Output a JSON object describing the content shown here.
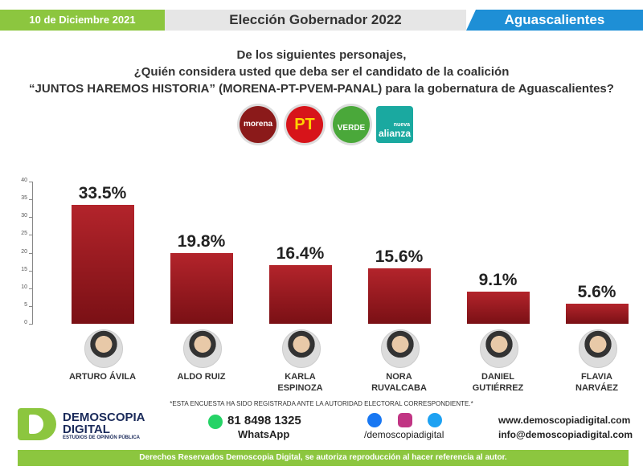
{
  "header": {
    "date": "10 de Diciembre 2021",
    "title": "Elección Gobernador 2022",
    "state": "Aguascalientes"
  },
  "question": [
    "De los siguientes personajes,",
    "¿Quién considera usted que deba ser el candidato de la coalición",
    "“JUNTOS HAREMOS HISTORIA” (MORENA-PT-PVEM-PANAL)  para la gobernatura de Aguascalientes?"
  ],
  "parties": [
    "morena",
    "PT",
    "VERDE",
    "nueva",
    "alianza"
  ],
  "chart_data": {
    "type": "bar",
    "categories": [
      "ARTURO ÁVILA",
      "ALDO RUIZ",
      "KARLA ESPINOZA",
      "NORA RUVALCABA",
      "DANIEL GUTIÉRREZ",
      "FLAVIA NARVÁEZ"
    ],
    "values": [
      33.5,
      19.8,
      16.4,
      15.6,
      9.1,
      5.6
    ],
    "value_labels": [
      "33.5%",
      "19.8%",
      "16.4%",
      "15.6%",
      "9.1%",
      "5.6%"
    ],
    "color": "#9b1b22",
    "ylim": [
      0,
      40
    ],
    "yticks": [
      0,
      5,
      10,
      15,
      20,
      25,
      30,
      35,
      40
    ]
  },
  "footer": {
    "note": "*ESTA ENCUESTA HA SIDO REGISTRADA ANTE LA AUTORIDAD ELECTORAL CORRESPONDIENTE.*",
    "brand_1": "DEMOSCOPIA",
    "brand_2": "DIGITAL",
    "tagline": "ESTUDIOS DE OPINIÓN PÚBLICA",
    "phone": "81 8498 1325",
    "whatsapp": "WhatsApp",
    "social": "/demoscopiadigital",
    "web": "www.demoscopiadigital.com",
    "email": "info@demoscopiadigital.com",
    "copyright": "Derechos Reservados Demoscopia Digital, se autoriza reproducción al hacer referencia al autor."
  }
}
